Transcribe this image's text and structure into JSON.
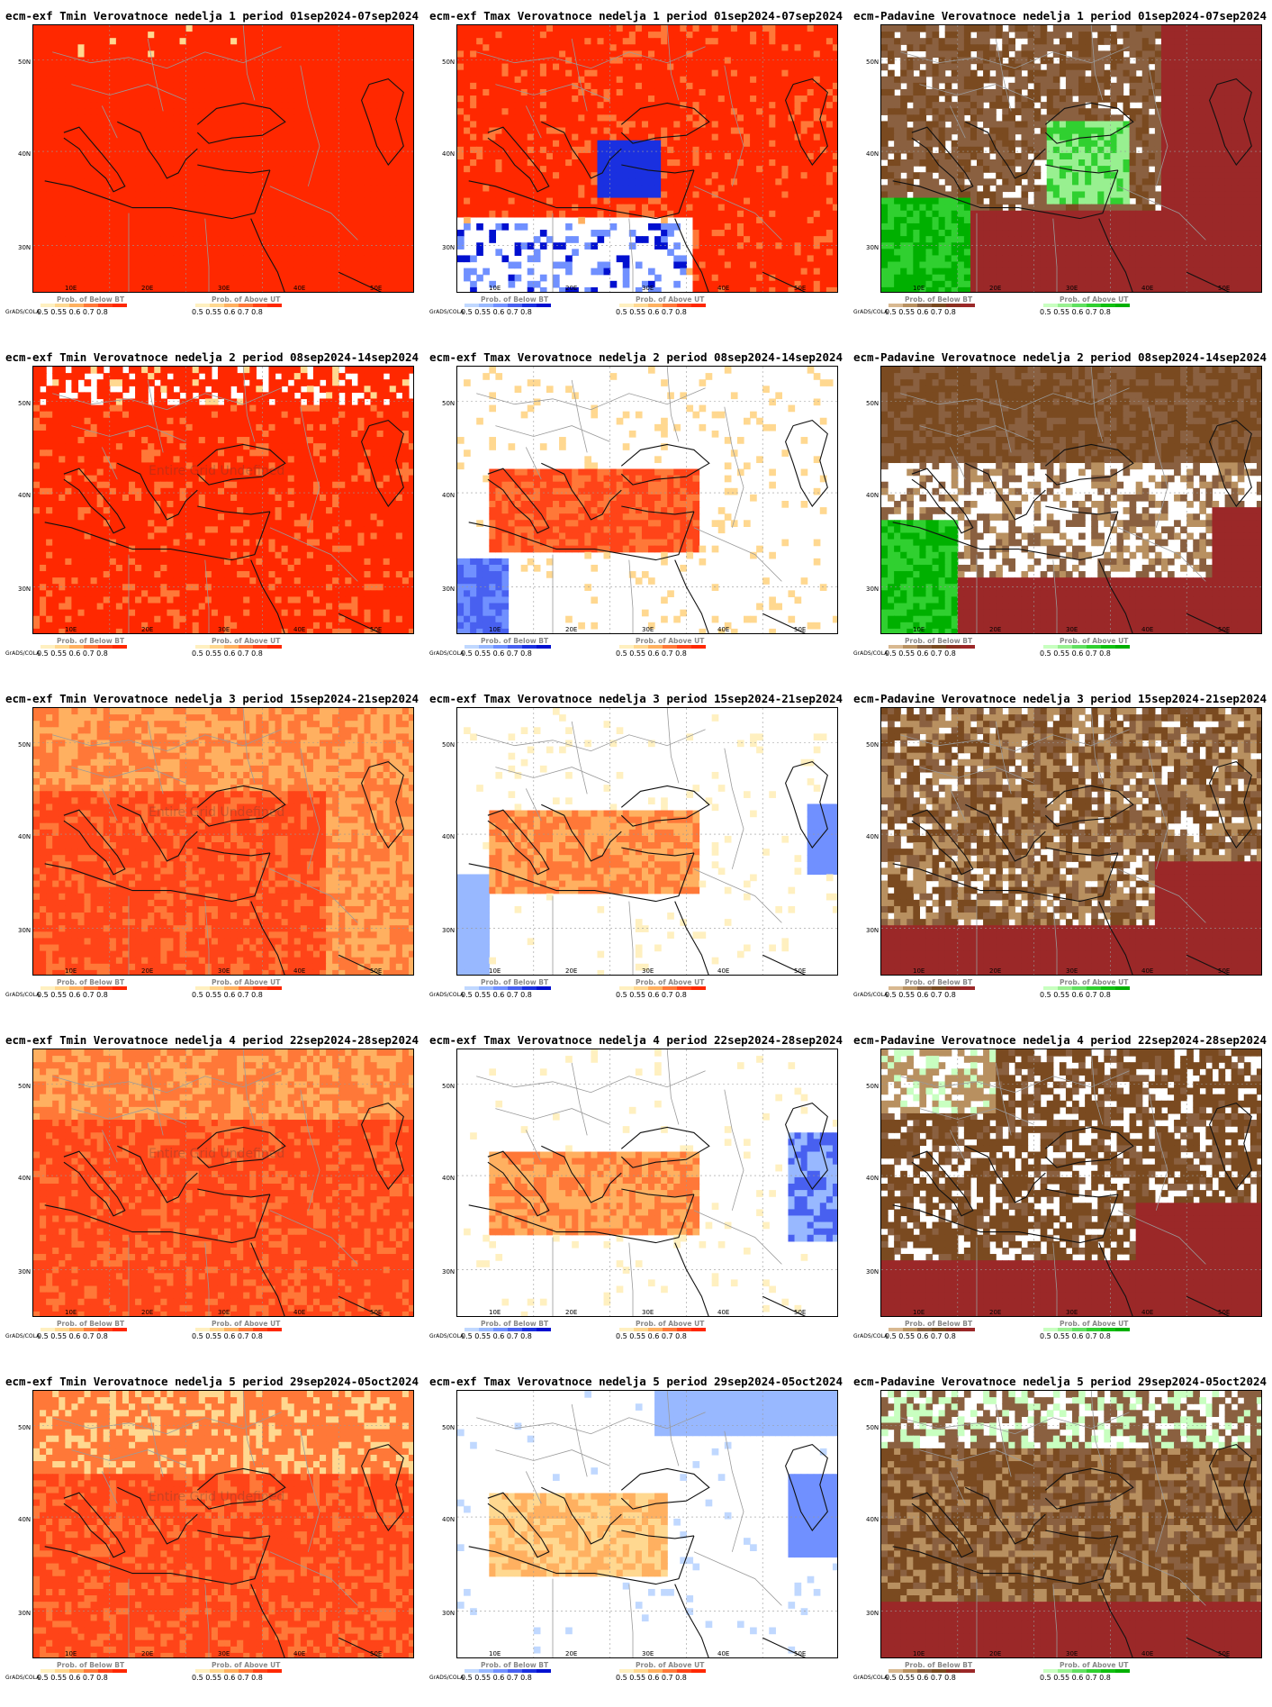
{
  "colors": {
    "above_scale": [
      "#fff0c0",
      "#ffd890",
      "#ffb060",
      "#ff7838",
      "#ff4418",
      "#ff2800"
    ],
    "below_scale": [
      "#c0d8ff",
      "#98b8ff",
      "#7090ff",
      "#4860f0",
      "#1a30e0",
      "#0010d0"
    ],
    "precip_below_scale": [
      "#d8b890",
      "#b89060",
      "#8a6040",
      "#7a4a20",
      "#8b3020",
      "#9b2828"
    ],
    "precip_above_scale": [
      "#c8ffc0",
      "#98f090",
      "#60e060",
      "#30d030",
      "#10c010",
      "#00b000"
    ]
  },
  "axes": {
    "y_ticks": [
      "50N",
      "40N",
      "30N"
    ],
    "x_ticks": [
      "10E",
      "20E",
      "30E",
      "40E",
      "50E"
    ]
  },
  "legend": {
    "below_title": "Prob. of Below BT",
    "above_title_temp": "Prob. of Above UT",
    "above_title_precip": "Prob. of Above UT",
    "below_ticks": "0.5  0.55  0.6  0.7  0.8",
    "above_ticks": "0.5  0.55  0.6  0.7  0.8",
    "grads_label": "GrADS/COLA"
  },
  "ghost_text": "Entire Grid Undefined",
  "panels": [
    {
      "title": "ecm-exf Tmin Verovatnoce nedelja 1 period 01sep2024-07sep2024",
      "kind": "tmin",
      "week": 1,
      "ghost": false
    },
    {
      "title": "ecm-exf Tmax Verovatnoce nedelja 1 period 01sep2024-07sep2024",
      "kind": "tmax",
      "week": 1,
      "ghost": false
    },
    {
      "title": "ecm-Padavine Verovatnoce nedelja 1 period 01sep2024-07sep2024",
      "kind": "precip",
      "week": 1,
      "ghost": false
    },
    {
      "title": "ecm-exf Tmin Verovatnoce nedelja 2 period 08sep2024-14sep2024",
      "kind": "tmin",
      "week": 2,
      "ghost": true
    },
    {
      "title": "ecm-exf Tmax Verovatnoce nedelja 2 period 08sep2024-14sep2024",
      "kind": "tmax",
      "week": 2,
      "ghost": false
    },
    {
      "title": "ecm-Padavine Verovatnoce nedelja 2 period 08sep2024-14sep2024",
      "kind": "precip",
      "week": 2,
      "ghost": false
    },
    {
      "title": "ecm-exf Tmin Verovatnoce nedelja 3 period 15sep2024-21sep2024",
      "kind": "tmin",
      "week": 3,
      "ghost": true
    },
    {
      "title": "ecm-exf Tmax Verovatnoce nedelja 3 period 15sep2024-21sep2024",
      "kind": "tmax",
      "week": 3,
      "ghost": false
    },
    {
      "title": "ecm-Padavine Verovatnoce nedelja 3 period 15sep2024-21sep2024",
      "kind": "precip",
      "week": 3,
      "ghost": false
    },
    {
      "title": "ecm-exf Tmin Verovatnoce nedelja 4 period 22sep2024-28sep2024",
      "kind": "tmin",
      "week": 4,
      "ghost": true
    },
    {
      "title": "ecm-exf Tmax Verovatnoce nedelja 4 period 22sep2024-28sep2024",
      "kind": "tmax",
      "week": 4,
      "ghost": false
    },
    {
      "title": "ecm-Padavine Verovatnoce nedelja 4 period 22sep2024-28sep2024",
      "kind": "precip",
      "week": 4,
      "ghost": false
    },
    {
      "title": "ecm-exf Tmin Verovatnoce nedelja 5 period 29sep2024-05oct2024",
      "kind": "tmin",
      "week": 5,
      "ghost": true
    },
    {
      "title": "ecm-exf Tmax Verovatnoce nedelja 5 period 29sep2024-05oct2024",
      "kind": "tmax",
      "week": 5,
      "ghost": false
    },
    {
      "title": "ecm-Padavine Verovatnoce nedelja 5 period 29sep2024-05oct2024",
      "kind": "precip",
      "week": 5,
      "ghost": false
    }
  ]
}
